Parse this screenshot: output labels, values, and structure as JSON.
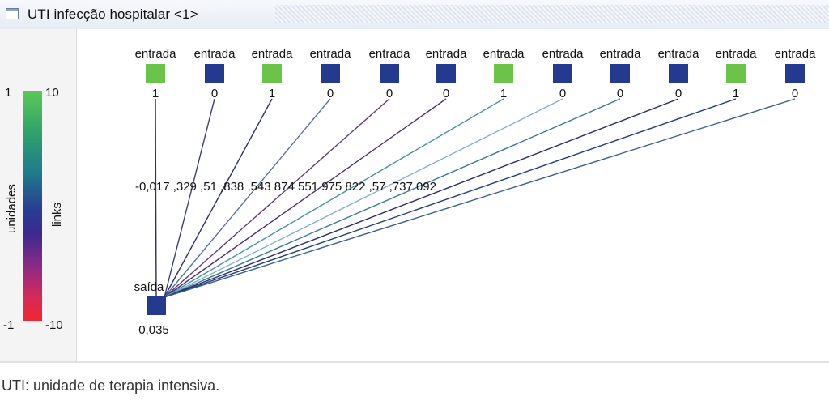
{
  "window": {
    "title": "UTI infecção hospitalar <1>"
  },
  "legend": {
    "units_label": "unidades",
    "links_label": "links",
    "units_max": "1",
    "units_min": "-1",
    "links_max": "10",
    "links_min": "-10"
  },
  "network": {
    "inputs": [
      {
        "label": "entrada",
        "value": "1",
        "color": "#6cc34a"
      },
      {
        "label": "entrada",
        "value": "0",
        "color": "#233a8e"
      },
      {
        "label": "entrada",
        "value": "1",
        "color": "#6cc34a"
      },
      {
        "label": "entrada",
        "value": "0",
        "color": "#233a8e"
      },
      {
        "label": "entrada",
        "value": "0",
        "color": "#233a8e"
      },
      {
        "label": "entrada",
        "value": "0",
        "color": "#233a8e"
      },
      {
        "label": "entrada",
        "value": "1",
        "color": "#6cc34a"
      },
      {
        "label": "entrada",
        "value": "0",
        "color": "#233a8e"
      },
      {
        "label": "entrada",
        "value": "0",
        "color": "#233a8e"
      },
      {
        "label": "entrada",
        "value": "0",
        "color": "#233a8e"
      },
      {
        "label": "entrada",
        "value": "1",
        "color": "#6cc34a"
      },
      {
        "label": "entrada",
        "value": "0",
        "color": "#233a8e"
      }
    ],
    "weights_text": [
      "-0,017",
      ",329",
      ",51",
      ",838",
      ",543",
      "874",
      "551",
      "975",
      "822",
      ",57",
      ",737",
      "092"
    ],
    "link_colors": [
      "#2e2f5a",
      "#3d3f7a",
      "#2b2d6a",
      "#5a6fa8",
      "#5e3d7a",
      "#4a2f6d",
      "#4a8fa8",
      "#7fb0c8",
      "#3a7a92",
      "#2a2a6a",
      "#1f3d7a",
      "#3a5f8e"
    ],
    "output": {
      "label": "saída",
      "value": "0,035",
      "color": "#233a8e"
    }
  },
  "caption": "UTI: unidade de terapia intensiva."
}
